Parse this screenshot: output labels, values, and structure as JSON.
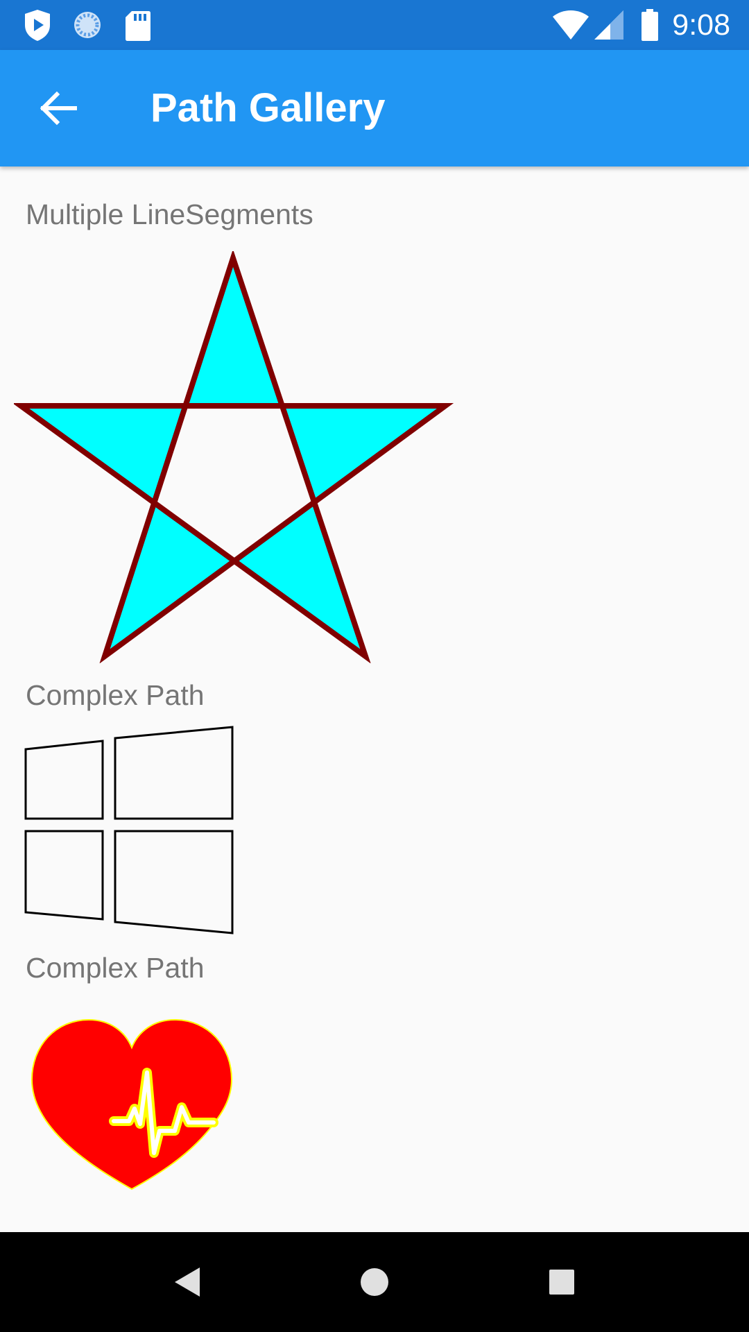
{
  "status_bar": {
    "time": "9:08",
    "icons": [
      "play-protect-icon",
      "sync-icon",
      "sd-card-icon",
      "wifi-icon",
      "cellular-signal-icon",
      "battery-icon"
    ]
  },
  "app_bar": {
    "title": "Path Gallery",
    "back_icon": "arrow-left-icon"
  },
  "sections": [
    {
      "label": "Multiple LineSegments",
      "shape": "star",
      "fill": "#00ffff",
      "stroke": "#800000"
    },
    {
      "label": "Complex Path",
      "shape": "windows-logo",
      "fill": "none",
      "stroke": "#000000"
    },
    {
      "label": "Complex Path",
      "shape": "heart-pulse",
      "fill": "#ff0000",
      "stroke": "#ffff00"
    }
  ],
  "nav_bar": {
    "icons": [
      "back-triangle-icon",
      "home-circle-icon",
      "recents-square-icon"
    ]
  }
}
